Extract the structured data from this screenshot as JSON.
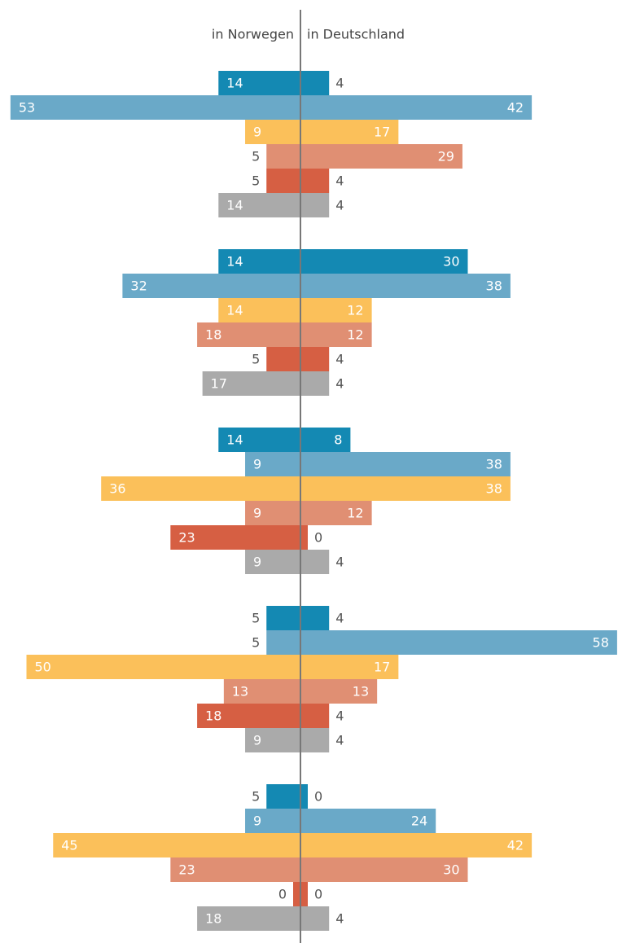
{
  "chart_data": {
    "type": "butterfly",
    "left_label": "in Norwegen",
    "right_label": "in Deutschland",
    "colors": [
      "#1489b3",
      "#6aa9c8",
      "#fbc05a",
      "#e08f73",
      "#d65f43",
      "#aaaaaa"
    ],
    "groups": [
      {
        "left": [
          14,
          53,
          9,
          5,
          5,
          14
        ],
        "right": [
          4,
          42,
          17,
          29,
          4,
          4
        ]
      },
      {
        "left": [
          14,
          32,
          14,
          18,
          5,
          17
        ],
        "right": [
          30,
          38,
          12,
          12,
          4,
          4
        ]
      },
      {
        "left": [
          14,
          9,
          36,
          9,
          23,
          9
        ],
        "right": [
          8,
          38,
          38,
          12,
          0,
          4
        ]
      },
      {
        "left": [
          5,
          5,
          50,
          13,
          18,
          9
        ],
        "right": [
          4,
          58,
          17,
          13,
          4,
          4
        ]
      },
      {
        "left": [
          5,
          9,
          45,
          23,
          0,
          18
        ],
        "right": [
          0,
          24,
          42,
          30,
          0,
          4
        ]
      }
    ]
  }
}
